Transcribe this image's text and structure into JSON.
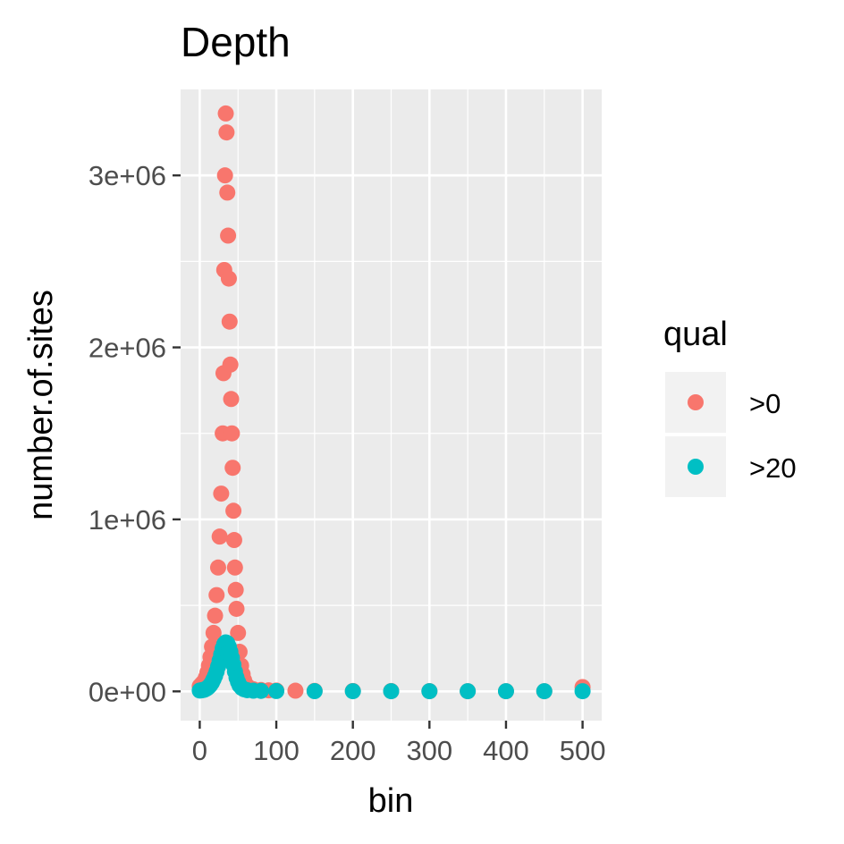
{
  "chart_data": {
    "type": "scatter",
    "title": "Depth",
    "xlabel": "bin",
    "ylabel": "number.of.sites",
    "xlim": [
      -25,
      525
    ],
    "ylim": [
      -170000,
      3500000
    ],
    "x_ticks": [
      0,
      100,
      200,
      300,
      400,
      500
    ],
    "x_tick_labels": [
      "0",
      "100",
      "200",
      "300",
      "400",
      "500"
    ],
    "x_minor_ticks": [
      50,
      150,
      250,
      350,
      450
    ],
    "y_ticks": [
      0,
      1000000,
      2000000,
      3000000
    ],
    "y_tick_labels": [
      "0e+00",
      "1e+06",
      "2e+06",
      "3e+06"
    ],
    "y_minor_ticks": [
      500000,
      1500000,
      2500000
    ],
    "grid": true,
    "legend_position": "right",
    "legend_title": "qual",
    "series": [
      {
        "name": ">0",
        "color": "#F8766D",
        "points": [
          [
            0,
            30000
          ],
          [
            2,
            40000
          ],
          [
            4,
            50000
          ],
          [
            6,
            60000
          ],
          [
            8,
            80000
          ],
          [
            10,
            110000
          ],
          [
            12,
            150000
          ],
          [
            14,
            200000
          ],
          [
            16,
            260000
          ],
          [
            18,
            340000
          ],
          [
            20,
            440000
          ],
          [
            22,
            560000
          ],
          [
            24,
            720000
          ],
          [
            26,
            900000
          ],
          [
            28,
            1150000
          ],
          [
            30,
            1500000
          ],
          [
            31,
            1850000
          ],
          [
            32,
            2450000
          ],
          [
            33,
            3000000
          ],
          [
            34,
            3360000
          ],
          [
            35,
            3250000
          ],
          [
            36,
            2900000
          ],
          [
            37,
            2650000
          ],
          [
            38,
            2400000
          ],
          [
            39,
            2150000
          ],
          [
            40,
            1900000
          ],
          [
            41,
            1700000
          ],
          [
            42,
            1500000
          ],
          [
            43,
            1300000
          ],
          [
            44,
            1050000
          ],
          [
            45,
            880000
          ],
          [
            46,
            720000
          ],
          [
            47,
            590000
          ],
          [
            48,
            480000
          ],
          [
            50,
            340000
          ],
          [
            52,
            230000
          ],
          [
            54,
            150000
          ],
          [
            56,
            100000
          ],
          [
            58,
            65000
          ],
          [
            60,
            42000
          ],
          [
            62,
            30000
          ],
          [
            65,
            20000
          ],
          [
            70,
            12000
          ],
          [
            80,
            8000
          ],
          [
            90,
            6000
          ],
          [
            100,
            5000
          ],
          [
            125,
            4000
          ],
          [
            150,
            3000
          ],
          [
            200,
            2500
          ],
          [
            250,
            2000
          ],
          [
            300,
            1500
          ],
          [
            350,
            1200
          ],
          [
            400,
            1000
          ],
          [
            450,
            1000
          ],
          [
            500,
            25000
          ]
        ]
      },
      {
        "name": ">20",
        "color": "#00BFC4",
        "points": [
          [
            0,
            5000
          ],
          [
            2,
            6000
          ],
          [
            4,
            8000
          ],
          [
            6,
            10000
          ],
          [
            8,
            14000
          ],
          [
            10,
            20000
          ],
          [
            12,
            28000
          ],
          [
            14,
            38000
          ],
          [
            16,
            52000
          ],
          [
            18,
            70000
          ],
          [
            20,
            90000
          ],
          [
            22,
            115000
          ],
          [
            24,
            145000
          ],
          [
            26,
            180000
          ],
          [
            28,
            215000
          ],
          [
            30,
            250000
          ],
          [
            32,
            275000
          ],
          [
            34,
            285000
          ],
          [
            36,
            280000
          ],
          [
            38,
            260000
          ],
          [
            40,
            230000
          ],
          [
            42,
            195000
          ],
          [
            44,
            155000
          ],
          [
            46,
            115000
          ],
          [
            48,
            80000
          ],
          [
            50,
            55000
          ],
          [
            52,
            35000
          ],
          [
            55,
            20000
          ],
          [
            58,
            12000
          ],
          [
            62,
            7000
          ],
          [
            70,
            4000
          ],
          [
            80,
            3000
          ],
          [
            100,
            2000
          ],
          [
            150,
            1500
          ],
          [
            200,
            1000
          ],
          [
            250,
            1000
          ],
          [
            300,
            1000
          ],
          [
            350,
            1000
          ],
          [
            400,
            1000
          ],
          [
            450,
            1000
          ],
          [
            500,
            1000
          ]
        ]
      }
    ]
  }
}
